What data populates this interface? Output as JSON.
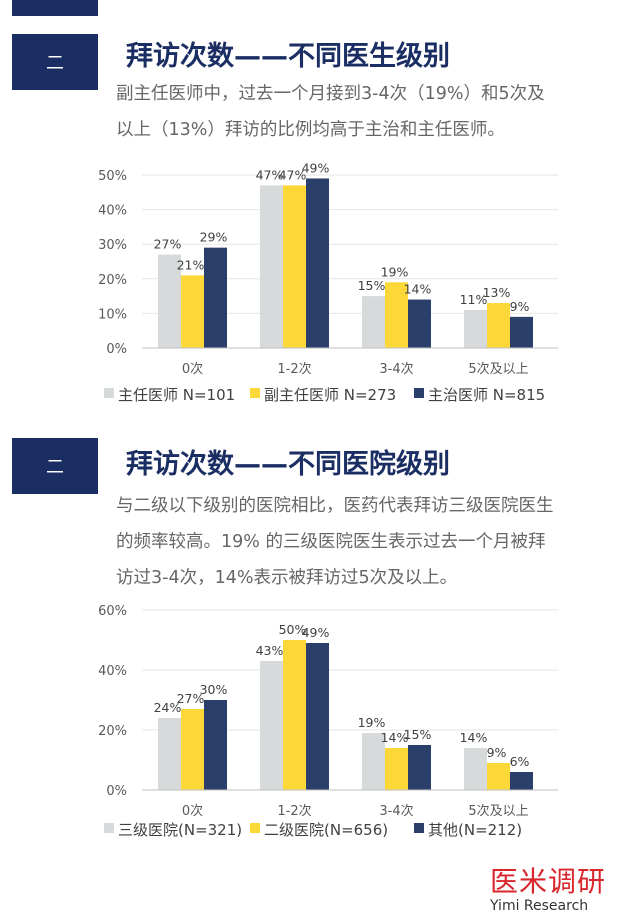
{
  "sections": [
    {
      "badge": "二",
      "title": "拜访次数——不同医生级别",
      "desc_lines": [
        "副主任医师中，过去一个月接到3-4次（19%）和5次及",
        "以上（13%）拜访的比例均高于主治和主任医师。"
      ]
    },
    {
      "badge": "二",
      "title": "拜访次数——不同医院级别",
      "desc_lines": [
        "与二级以下级别的医院相比，医药代表拜访三级医院医生",
        "的频率较高。19% 的三级医院医生表示过去一个月被拜",
        "访过3-4次，14%表示被拜访过5次及以上。"
      ]
    }
  ],
  "chart_data": [
    {
      "type": "bar",
      "categories": [
        "0次",
        "1-2次",
        "3-4次",
        "5次及以上"
      ],
      "ylim": [
        0,
        50
      ],
      "yticks": [
        0,
        10,
        20,
        30,
        40,
        50
      ],
      "tick_suffix": "%",
      "series": [
        {
          "name": "主任医师 N=101",
          "values": [
            27,
            47,
            15,
            11
          ],
          "labels": [
            "27%",
            "47%",
            "15%",
            "11%"
          ],
          "color": "#d6dadb"
        },
        {
          "name": "副主任医师 N=273",
          "values": [
            21,
            47,
            19,
            13
          ],
          "labels": [
            "21%",
            "47%",
            "19%",
            "13%"
          ],
          "color": "#fcd738"
        },
        {
          "name": "主治医师 N=815",
          "values": [
            29,
            49,
            14,
            9
          ],
          "labels": [
            "29%",
            "49%",
            "14%",
            "9%"
          ],
          "color": "#2b3f6b"
        }
      ],
      "legend_position": "bottom"
    },
    {
      "type": "bar",
      "categories": [
        "0次",
        "1-2次",
        "3-4次",
        "5次及以上"
      ],
      "ylim": [
        0,
        60
      ],
      "yticks": [
        0,
        20,
        40,
        60
      ],
      "tick_suffix": "%",
      "series": [
        {
          "name": "三级医院(N=321)",
          "values": [
            24,
            43,
            19,
            14
          ],
          "labels": [
            "24%",
            "43%",
            "19%",
            "14%"
          ],
          "color": "#d6dadb"
        },
        {
          "name": "二级医院(N=656)",
          "values": [
            27,
            50,
            14,
            9
          ],
          "labels": [
            "27%",
            "50%",
            "14%",
            "9%"
          ],
          "color": "#fcd738"
        },
        {
          "name": "其他(N=212)",
          "values": [
            30,
            49,
            15,
            6
          ],
          "labels": [
            "30%",
            "49%",
            "15%",
            "6%"
          ],
          "color": "#2b3f6b"
        }
      ],
      "legend_position": "bottom"
    }
  ],
  "brand": {
    "cn": "医米调研",
    "en": "Yimi Research"
  }
}
